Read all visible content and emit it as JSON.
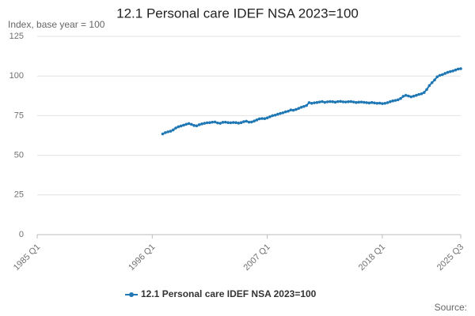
{
  "chart_data": {
    "type": "line",
    "title": "12.1 Personal care IDEF NSA 2023=100",
    "subtitle": "Index, base year = 100",
    "source": "Source:",
    "categories": [
      "1985 Q1",
      null,
      null,
      null,
      null,
      null,
      null,
      null,
      null,
      null,
      null,
      null,
      null,
      null,
      null,
      null,
      null,
      null,
      null,
      null,
      null,
      null,
      null,
      null,
      null,
      null,
      null,
      null,
      null,
      null,
      null,
      null,
      null,
      null,
      null,
      null,
      null,
      null,
      null,
      null,
      null,
      null,
      null,
      null,
      "1996 Q1",
      null,
      null,
      null,
      null,
      null,
      null,
      null,
      null,
      null,
      null,
      null,
      null,
      null,
      null,
      null,
      null,
      null,
      null,
      null,
      null,
      null,
      null,
      null,
      null,
      null,
      null,
      null,
      null,
      null,
      null,
      null,
      null,
      null,
      null,
      null,
      null,
      null,
      null,
      null,
      null,
      null,
      null,
      null,
      "2007 Q1",
      null,
      null,
      null,
      null,
      null,
      null,
      null,
      null,
      null,
      null,
      null,
      null,
      null,
      null,
      null,
      null,
      null,
      null,
      null,
      null,
      null,
      null,
      null,
      null,
      null,
      null,
      null,
      null,
      null,
      null,
      null,
      null,
      null,
      null,
      null,
      null,
      null,
      null,
      null,
      null,
      null,
      null,
      null,
      "2018 Q1",
      null,
      null,
      null,
      null,
      null,
      null,
      null,
      null,
      null,
      null,
      null,
      null,
      null,
      null,
      null,
      null,
      null,
      null,
      null,
      null,
      null,
      null,
      null,
      null,
      null,
      null,
      null,
      null,
      null,
      "2025 Q3"
    ],
    "series": [
      {
        "name": "12.1 Personal care IDEF NSA 2023=100",
        "color": "#1f77b4",
        "values": [
          null,
          null,
          null,
          null,
          null,
          null,
          null,
          null,
          null,
          null,
          null,
          null,
          null,
          null,
          null,
          null,
          null,
          null,
          null,
          null,
          null,
          null,
          null,
          null,
          null,
          null,
          null,
          null,
          null,
          null,
          null,
          null,
          null,
          null,
          null,
          null,
          null,
          null,
          null,
          null,
          null,
          null,
          null,
          null,
          null,
          null,
          null,
          null,
          63.5,
          64.3,
          64.8,
          65.2,
          66.0,
          67.2,
          68.0,
          68.5,
          69.0,
          69.6,
          70.0,
          69.5,
          68.8,
          68.6,
          69.3,
          69.8,
          70.2,
          70.5,
          70.6,
          70.9,
          71.0,
          70.4,
          70.2,
          70.8,
          70.9,
          70.6,
          70.5,
          70.7,
          70.6,
          70.3,
          70.6,
          71.2,
          71.5,
          70.9,
          71.0,
          71.6,
          72.3,
          73.0,
          73.2,
          73.1,
          73.6,
          74.3,
          75.0,
          75.3,
          75.9,
          76.4,
          76.8,
          77.4,
          77.8,
          78.6,
          78.4,
          78.9,
          79.6,
          80.3,
          80.8,
          81.4,
          83.2,
          82.8,
          83.1,
          83.3,
          83.6,
          83.9,
          83.4,
          83.7,
          83.9,
          83.8,
          83.5,
          83.9,
          84.0,
          83.7,
          83.6,
          83.8,
          83.9,
          83.6,
          83.3,
          83.5,
          83.6,
          83.4,
          83.2,
          83.0,
          83.3,
          83.0,
          82.8,
          82.9,
          82.6,
          82.8,
          83.2,
          83.8,
          84.3,
          84.6,
          85.0,
          85.8,
          87.2,
          87.8,
          87.4,
          86.9,
          87.3,
          87.8,
          88.4,
          88.8,
          89.6,
          91.5,
          94.0,
          95.8,
          97.5,
          99.5,
          100.4,
          100.9,
          101.6,
          102.3,
          102.8,
          103.2,
          103.8,
          104.4,
          104.6
        ]
      }
    ],
    "ylim": [
      0,
      125
    ],
    "yticks": [
      0,
      25,
      50,
      75,
      100,
      125
    ],
    "grid": true
  }
}
